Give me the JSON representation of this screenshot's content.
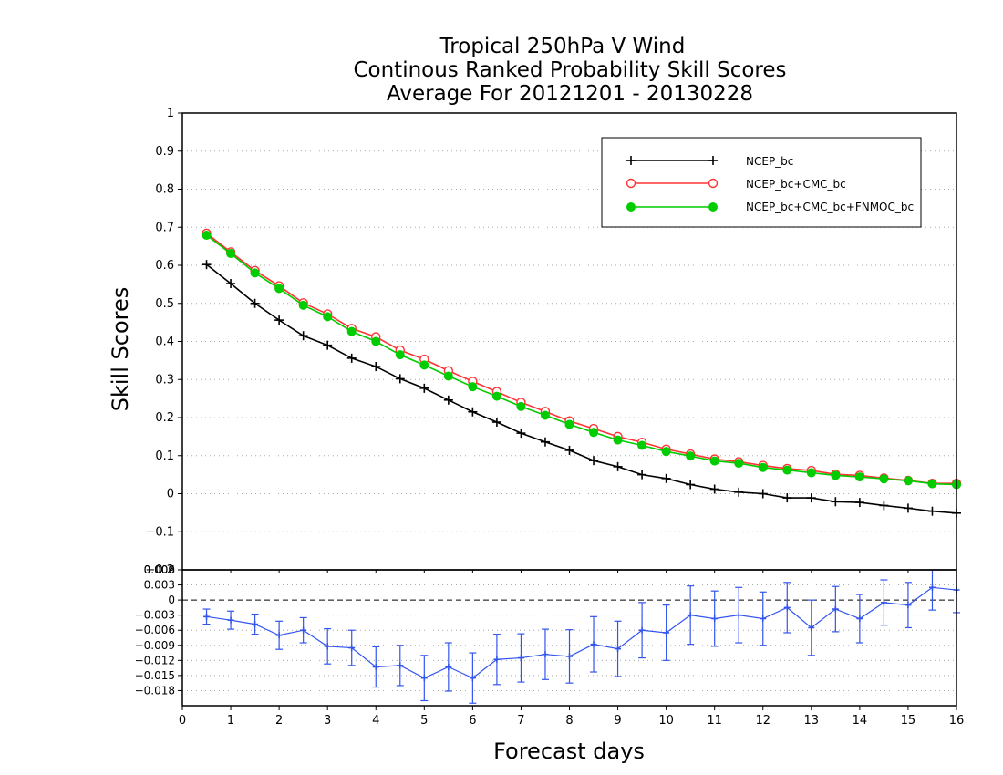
{
  "chart_data": [
    {
      "type": "line",
      "title": [
        "Tropical 250hPa V Wind",
        "Continous Ranked Probability Skill Scores",
        "Average For 20121201 - 20130228"
      ],
      "xlabel": "Forecast days",
      "ylabel": "Skill Scores",
      "xlim": [
        0,
        16
      ],
      "ylim": [
        -0.2,
        1
      ],
      "yticks": [
        "1",
        "0.9",
        "0.8",
        "0.7",
        "0.6",
        "0.5",
        "0.4",
        "0.3",
        "0.2",
        "0.1",
        "0",
        "−0.1",
        "−0.2"
      ],
      "ytick_values": [
        1,
        0.9,
        0.8,
        0.7,
        0.6,
        0.5,
        0.4,
        0.3,
        0.2,
        0.1,
        0,
        -0.1,
        -0.2
      ],
      "grid": true,
      "legend_position": "top-right",
      "x": [
        0.5,
        1,
        1.5,
        2,
        2.5,
        3,
        3.5,
        4,
        4.5,
        5,
        5.5,
        6,
        6.5,
        7,
        7.5,
        8,
        8.5,
        9,
        9.5,
        10,
        10.5,
        11,
        11.5,
        12,
        12.5,
        13,
        13.5,
        14,
        14.5,
        15,
        15.5,
        16
      ],
      "series": [
        {
          "name": "NCEP_bc",
          "color": "#000000",
          "marker": "plus",
          "values": [
            0.602,
            0.552,
            0.5,
            0.456,
            0.415,
            0.39,
            0.356,
            0.334,
            0.302,
            0.277,
            0.246,
            0.215,
            0.188,
            0.159,
            0.136,
            0.114,
            0.087,
            0.071,
            0.05,
            0.04,
            0.024,
            0.012,
            0.004,
            0.0,
            -0.011,
            -0.011,
            -0.021,
            -0.023,
            -0.031,
            -0.038,
            -0.046,
            -0.051
          ]
        },
        {
          "name": "NCEP_bc+CMC_bc",
          "color": "#ff3333",
          "marker": "open-circle",
          "values": [
            0.684,
            0.635,
            0.586,
            0.546,
            0.501,
            0.472,
            0.434,
            0.412,
            0.377,
            0.353,
            0.323,
            0.295,
            0.268,
            0.24,
            0.216,
            0.191,
            0.171,
            0.15,
            0.135,
            0.117,
            0.104,
            0.091,
            0.084,
            0.074,
            0.066,
            0.061,
            0.051,
            0.048,
            0.041,
            0.035,
            0.027,
            0.027
          ]
        },
        {
          "name": "NCEP_bc+CMC_bc+FNMOC_bc",
          "color": "#00cc00",
          "marker": "filled-circle",
          "values": [
            0.679,
            0.631,
            0.58,
            0.539,
            0.495,
            0.465,
            0.426,
            0.4,
            0.365,
            0.338,
            0.309,
            0.281,
            0.256,
            0.229,
            0.206,
            0.182,
            0.161,
            0.141,
            0.127,
            0.111,
            0.099,
            0.086,
            0.08,
            0.069,
            0.062,
            0.055,
            0.048,
            0.044,
            0.039,
            0.034,
            0.026,
            0.024
          ]
        }
      ]
    },
    {
      "type": "line",
      "xlim": [
        0,
        16
      ],
      "ylim": [
        -0.021,
        0.006
      ],
      "xticks": [
        "0",
        "1",
        "2",
        "3",
        "4",
        "5",
        "6",
        "7",
        "8",
        "9",
        "10",
        "11",
        "12",
        "13",
        "14",
        "15",
        "16"
      ],
      "xtick_values": [
        0,
        1,
        2,
        3,
        4,
        5,
        6,
        7,
        8,
        9,
        10,
        11,
        12,
        13,
        14,
        15,
        16
      ],
      "yticks": [
        "0.006",
        "0.003",
        "0",
        "−0.003",
        "−0.006",
        "−0.009",
        "−0.012",
        "−0.015",
        "−0.018"
      ],
      "ytick_values": [
        0.006,
        0.003,
        0,
        -0.003,
        -0.006,
        -0.009,
        -0.012,
        -0.015,
        -0.018
      ],
      "top_clipped_tick": "0.009",
      "grid": true,
      "zero_line": "dashed",
      "series": [
        {
          "name": "",
          "color": "#3355ee",
          "marker": "plus",
          "error_bars": true,
          "values": [
            -0.0033,
            -0.004,
            -0.0048,
            -0.007,
            -0.006,
            -0.0092,
            -0.0095,
            -0.0133,
            -0.013,
            -0.0155,
            -0.0133,
            -0.0155,
            -0.0118,
            -0.0115,
            -0.0108,
            -0.0112,
            -0.0088,
            -0.0097,
            -0.006,
            -0.0065,
            -0.003,
            -0.0037,
            -0.003,
            -0.0037,
            -0.0015,
            -0.0055,
            -0.0018,
            -0.0037,
            -0.0005,
            -0.001,
            0.0025,
            0.002
          ],
          "error": [
            0.0015,
            0.0018,
            0.002,
            0.0028,
            0.0025,
            0.0035,
            0.0035,
            0.004,
            0.004,
            0.0045,
            0.0048,
            0.005,
            0.005,
            0.0048,
            0.005,
            0.0053,
            0.0055,
            0.0055,
            0.0055,
            0.0055,
            0.0058,
            0.0055,
            0.0055,
            0.0053,
            0.005,
            0.0055,
            0.0045,
            0.0048,
            0.0045,
            0.0045,
            0.0045,
            0.0045
          ]
        }
      ]
    }
  ]
}
